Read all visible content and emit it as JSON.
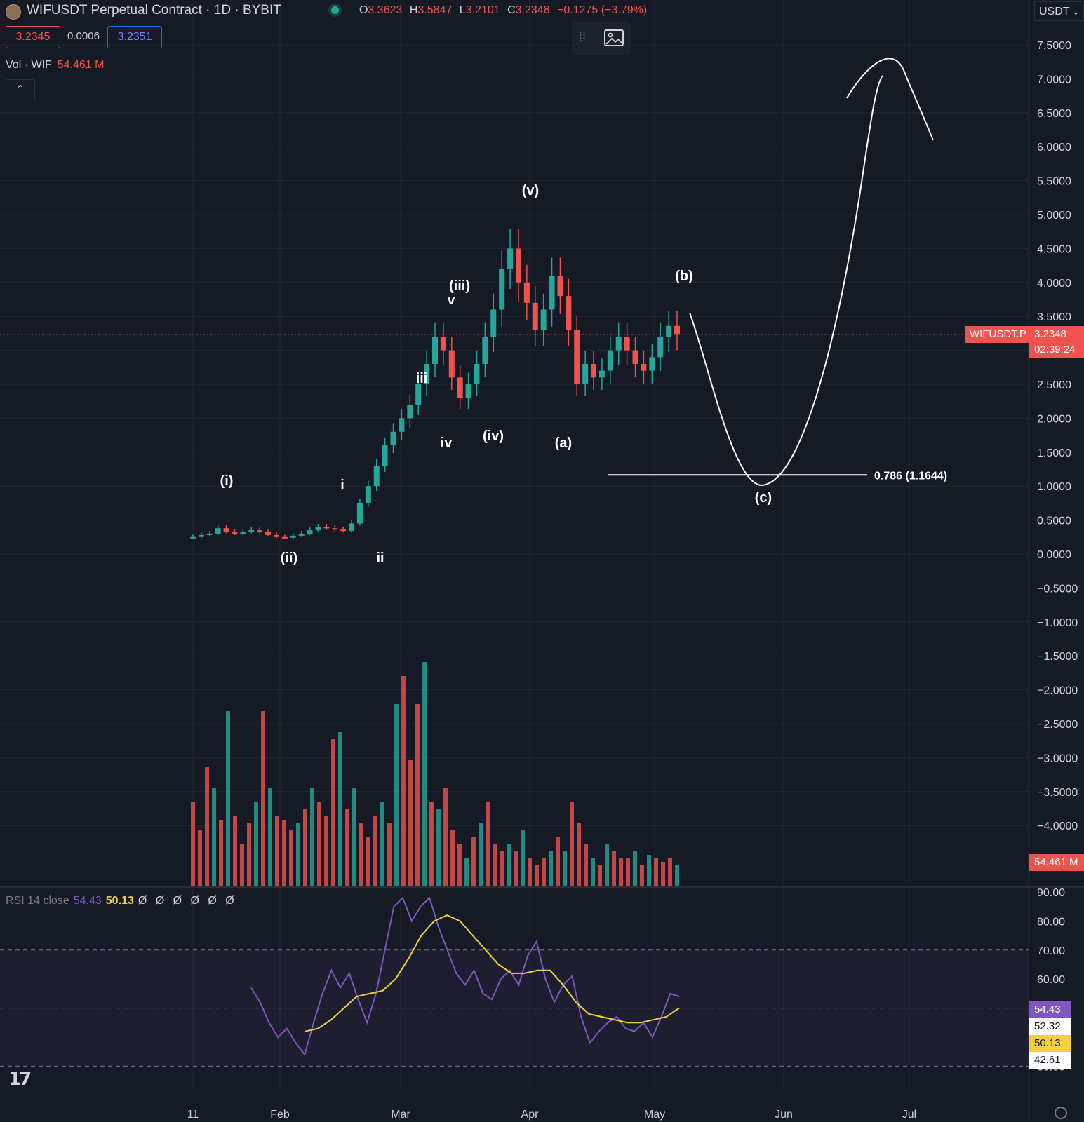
{
  "header": {
    "title": "WIFUSDT Perpetual Contract · 1D · BYBIT",
    "ohlc": {
      "o_label": "O",
      "o": "3.3623",
      "h_label": "H",
      "h": "3.5847",
      "l_label": "L",
      "l": "3.2101",
      "c_label": "C",
      "c": "3.2348",
      "change": "−0.1275 (−3.79%)"
    },
    "sell_price": "3.2345",
    "spread": "0.0006",
    "buy_price": "3.2351",
    "currency": "USDT"
  },
  "volume_legend": {
    "label": "Vol · WIF",
    "value": "54.461 M"
  },
  "rsi_legend": {
    "label": "RSI 14 close",
    "rsi": "54.43",
    "ma": "50.13",
    "extra": "Ø Ø Ø Ø Ø Ø"
  },
  "tags": {
    "symbol": "WIFUSDT.P",
    "last_price": "3.2348",
    "countdown": "02:39:24",
    "volume": "54.461 M",
    "rsi": "54.43",
    "rsi_b": "52.32",
    "rsi_ma": "50.13",
    "rsi_c": "42.61"
  },
  "colors": {
    "up": "#26a69a",
    "down": "#ef5350",
    "bg": "#161a25",
    "grid": "#232735",
    "rsi": "#7e57c2",
    "rsi_ma": "#f4d03f",
    "annot": "#ffffff"
  },
  "fib": {
    "label": "0.786 (1.1644)",
    "level": 1.1644
  },
  "chart_data": [
    {
      "type": "candlestick",
      "price_axis": {
        "ticks": [
          "7.5000",
          "7.0000",
          "6.5000",
          "6.0000",
          "5.5000",
          "5.0000",
          "4.5000",
          "4.0000",
          "3.5000",
          "3.0000",
          "2.5000",
          "2.0000",
          "1.5000",
          "1.0000",
          "0.5000",
          "0.0000",
          "−0.5000",
          "−1.0000",
          "−1.5000",
          "−2.0000",
          "−2.5000",
          "−3.0000",
          "−3.5000",
          "−4.0000"
        ],
        "range": [
          -4.6,
          7.7
        ]
      },
      "time_axis": {
        "ticks": [
          "11",
          "Feb",
          "Mar",
          "Apr",
          "May",
          "Jun",
          "Jul"
        ]
      },
      "last_price": 3.2348,
      "close_series_sampled": [
        0.25,
        0.28,
        0.3,
        0.38,
        0.33,
        0.3,
        0.33,
        0.35,
        0.32,
        0.28,
        0.25,
        0.24,
        0.27,
        0.3,
        0.35,
        0.4,
        0.38,
        0.36,
        0.34,
        0.45,
        0.75,
        1.0,
        1.3,
        1.6,
        1.8,
        2.0,
        2.2,
        2.5,
        2.8,
        3.2,
        3.0,
        2.6,
        2.3,
        2.5,
        2.8,
        3.2,
        3.6,
        4.2,
        4.5,
        4.0,
        3.7,
        3.3,
        3.6,
        4.1,
        3.8,
        3.3,
        2.5,
        2.8,
        2.6,
        2.7,
        3.0,
        3.2,
        3.0,
        2.8,
        2.7,
        2.9,
        3.2,
        3.36,
        3.23
      ],
      "wave_labels": [
        "(i)",
        "(ii)",
        "i",
        "ii",
        "iii",
        "iv",
        "v",
        "(iii)",
        "(iv)",
        "(v)",
        "(a)",
        "(b)",
        "(c)"
      ],
      "projection_path": [
        [
          0,
          3.6
        ],
        [
          1,
          1.0
        ],
        [
          2,
          3.3
        ],
        [
          3,
          7.3
        ],
        [
          4,
          6.1
        ]
      ]
    },
    {
      "type": "bar",
      "name": "Vol · WIF",
      "last_value": "54.461 M"
    },
    {
      "type": "line",
      "name": "RSI 14 close",
      "y_axis": {
        "ticks": [
          "90.00",
          "80.00",
          "70.00",
          "60.00",
          "50.00",
          "40.00",
          "30.00"
        ],
        "range": [
          30,
          90
        ]
      },
      "bands": {
        "upper": 70,
        "middle": 50,
        "lower": 30
      },
      "rsi_sampled": [
        57,
        52,
        45,
        40,
        43,
        38,
        34,
        45,
        55,
        63,
        57,
        62,
        53,
        45,
        55,
        70,
        85,
        88,
        80,
        85,
        88,
        78,
        70,
        62,
        58,
        63,
        55,
        53,
        60,
        63,
        58,
        68,
        73,
        60,
        52,
        58,
        61,
        47,
        38,
        42,
        45,
        47,
        43,
        42,
        45,
        40,
        47,
        55,
        54
      ],
      "ma_sampled": [
        42,
        43,
        46,
        50,
        54,
        55,
        56,
        60,
        67,
        75,
        80,
        82,
        80,
        75,
        70,
        65,
        62,
        62,
        63,
        63,
        58,
        52,
        48,
        47,
        46,
        45,
        45,
        46,
        47,
        50
      ]
    }
  ]
}
